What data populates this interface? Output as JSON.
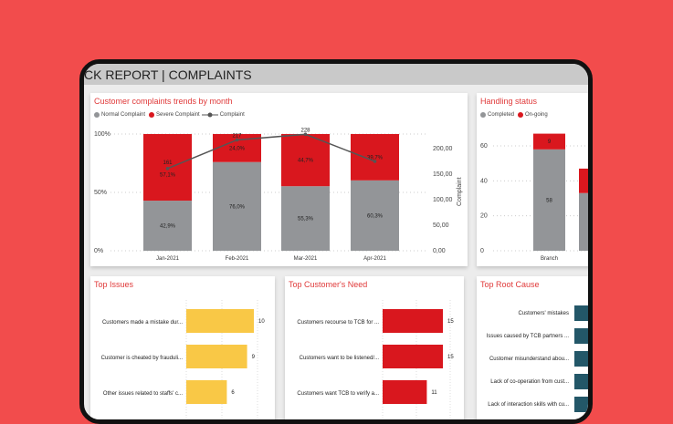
{
  "header": {
    "title": "CK REPORT | COMPLAINTS"
  },
  "colors": {
    "normal": "#939598",
    "severe": "#d9171e",
    "line": "#555555",
    "issues": "#f9c846",
    "needs": "#d9171e",
    "root": "#235768",
    "title": "#e03a3a"
  },
  "chart_data": [
    {
      "type": "bar",
      "stacked": "100%",
      "title": "Customer complaints trends by month",
      "categories": [
        "Jan-2021",
        "Feb-2021",
        "Mar-2021",
        "Apr-2021"
      ],
      "series": [
        {
          "name": "Normal Complaint",
          "values": [
            42.9,
            76.0,
            55.3,
            60.3
          ],
          "labels": [
            "42,9%",
            "76,0%",
            "55,3%",
            "60,3%"
          ]
        },
        {
          "name": "Severe Complaint",
          "values": [
            57.1,
            24.0,
            44.7,
            39.7
          ],
          "labels": [
            "57,1%",
            "24,0%",
            "44,7%",
            "39,7%"
          ]
        },
        {
          "name": "Complaint",
          "type": "line",
          "axis": "right",
          "values": [
            161,
            217,
            228,
            175
          ],
          "labels": [
            "161",
            "217",
            "228",
            ""
          ]
        }
      ],
      "yticks": [
        "0%",
        "50%",
        "100%"
      ],
      "y2ticks": [
        "0,00",
        "50,00",
        "100,00",
        "150,00",
        "200,00"
      ],
      "y2label": "Complaint",
      "y2lim": [
        0,
        228
      ]
    },
    {
      "type": "bar",
      "stacked": true,
      "title": "Handling status",
      "categories": [
        "Branch",
        ""
      ],
      "series": [
        {
          "name": "Completed",
          "values": [
            58,
            33
          ],
          "labels": [
            "58",
            ""
          ]
        },
        {
          "name": "On-going",
          "values": [
            9,
            14
          ],
          "labels": [
            "9",
            ""
          ]
        }
      ],
      "yticks": [
        "0",
        "20",
        "40",
        "60"
      ],
      "ylim": [
        0,
        70
      ]
    },
    {
      "type": "bar",
      "orientation": "horizontal",
      "title": "Top Issues",
      "categories": [
        "Customers made a mistake dur...",
        "Customer is cheated by frauduli...",
        "Other issues related to staffs' c..."
      ],
      "values": [
        10,
        9,
        6
      ]
    },
    {
      "type": "bar",
      "orientation": "horizontal",
      "title": "Top Customer's Need",
      "categories": [
        "Customers recourse to TCB for ...",
        "Customers want to be listened/...",
        "Customers want TCB to verify a..."
      ],
      "values": [
        15,
        15,
        11
      ]
    },
    {
      "type": "bar",
      "orientation": "horizontal",
      "title": "Top Root Cause",
      "categories": [
        "Customers' mistakes",
        "Issues caused by TCB partners ...",
        "Customer misunderstand abou...",
        "Lack of co-operation from cust...",
        "Lack of interaction skills with cu..."
      ]
    }
  ]
}
